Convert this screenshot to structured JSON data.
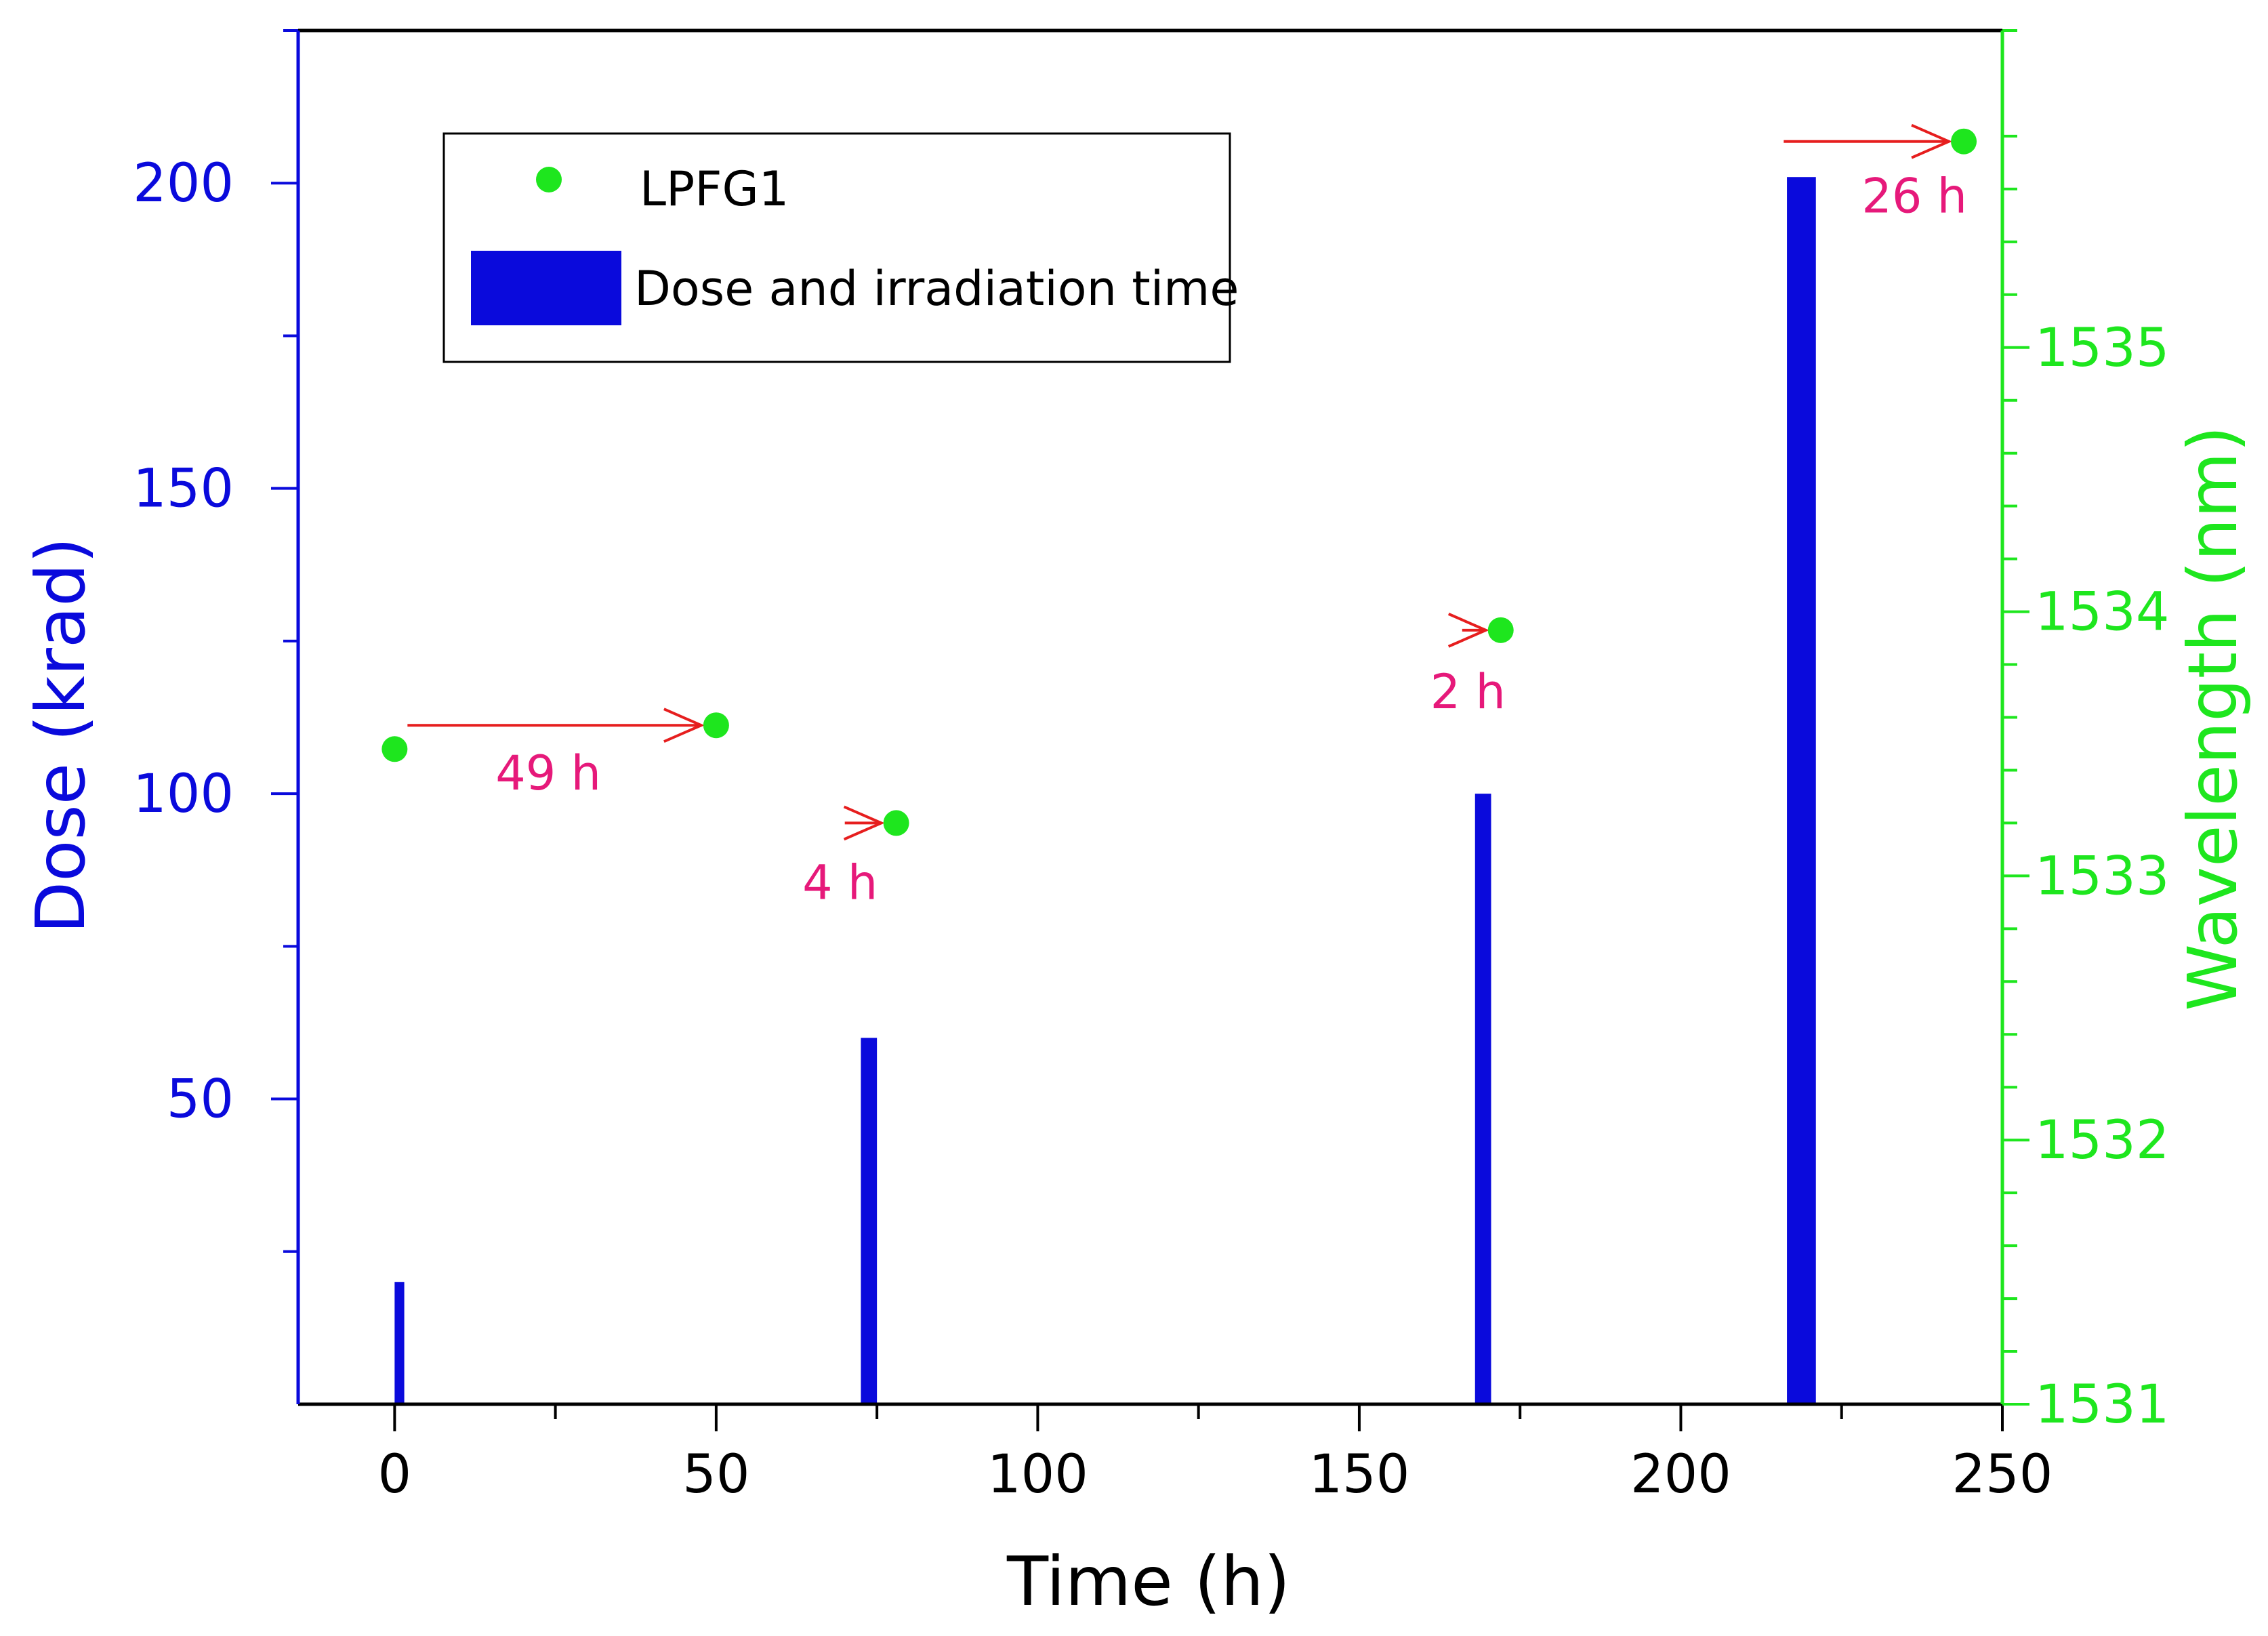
{
  "chart_data": {
    "type": "bar",
    "title": "",
    "xlabel": "Time (h)",
    "ylabel": "Dose (krad)",
    "y2label": "Wavelength (nm)",
    "xlim": [
      -15,
      250
    ],
    "ylim": [
      0,
      225
    ],
    "y2lim": [
      1531,
      1536.2
    ],
    "x_ticks": [
      0,
      50,
      100,
      150,
      200,
      250
    ],
    "y_ticks": [
      50,
      100,
      150,
      200
    ],
    "y2_ticks": [
      1531,
      1532,
      1533,
      1534,
      1535
    ],
    "grid": false,
    "legend_position": "top-left",
    "series": [
      {
        "name": "Dose and irradiation time",
        "kind": "bar",
        "axis": "left",
        "color": "#0a0adc",
        "bars": [
          {
            "start": 0,
            "end": 1.5,
            "value": 20
          },
          {
            "start": 72.5,
            "end": 75,
            "value": 60
          },
          {
            "start": 168,
            "end": 170.5,
            "value": 100
          },
          {
            "start": 216.5,
            "end": 221,
            "value": 201
          }
        ]
      },
      {
        "name": "LPFG1",
        "kind": "scatter",
        "axis": "right",
        "color": "#1ee61e",
        "points": [
          {
            "x": 0,
            "y": 1533.48
          },
          {
            "x": 50,
            "y": 1533.57
          },
          {
            "x": 78,
            "y": 1533.2
          },
          {
            "x": 172,
            "y": 1533.93
          },
          {
            "x": 244,
            "y": 1535.78
          }
        ]
      }
    ],
    "annotations": [
      {
        "text": "49 h",
        "arrow_from": 2,
        "arrow_to": 50,
        "y": 1533.57
      },
      {
        "text": "4 h",
        "arrow_from": 70,
        "arrow_to": 78,
        "y": 1533.2
      },
      {
        "text": "2 h",
        "arrow_from": 166,
        "arrow_to": 172,
        "y": 1533.93
      },
      {
        "text": "26 h",
        "arrow_from": 216,
        "arrow_to": 244,
        "y": 1535.78
      }
    ],
    "colors": {
      "left_axis": "#0a0adc",
      "right_axis": "#1ee61e",
      "arrow": "#e61e1e",
      "annotation_text": "#e6197a",
      "frame": "#000000"
    }
  }
}
